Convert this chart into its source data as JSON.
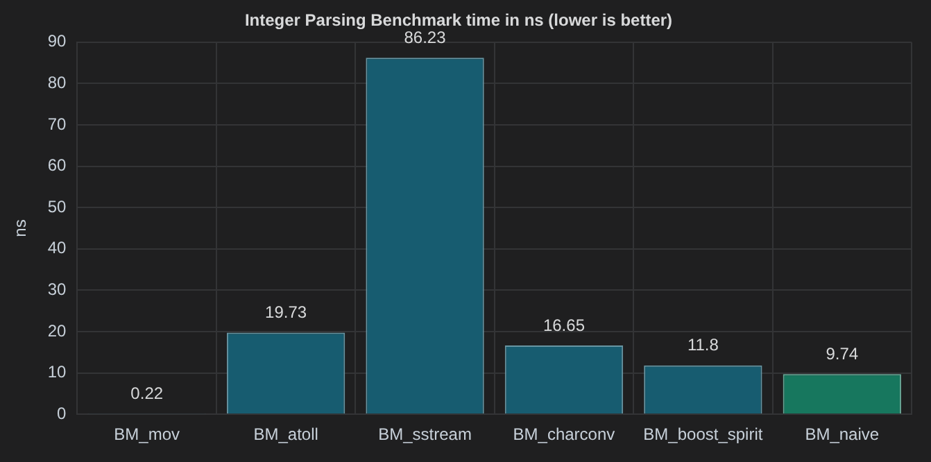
{
  "chart_data": {
    "type": "bar",
    "title": "Integer Parsing Benchmark time in ns (lower is better)",
    "ylabel": "ns",
    "categories": [
      "BM_mov",
      "BM_atoll",
      "BM_sstream",
      "BM_charconv",
      "BM_boost_spirit",
      "BM_naive"
    ],
    "values": [
      0.22,
      19.73,
      86.23,
      16.65,
      11.8,
      9.74
    ],
    "colors": [
      "#175c70",
      "#175c70",
      "#175c70",
      "#175c70",
      "#175c70",
      "#17775e"
    ],
    "ylim": [
      0,
      90
    ],
    "yticks": [
      0,
      10,
      20,
      30,
      40,
      50,
      60,
      70,
      80,
      90
    ],
    "grid": true,
    "data_labels": true,
    "legend": false
  }
}
